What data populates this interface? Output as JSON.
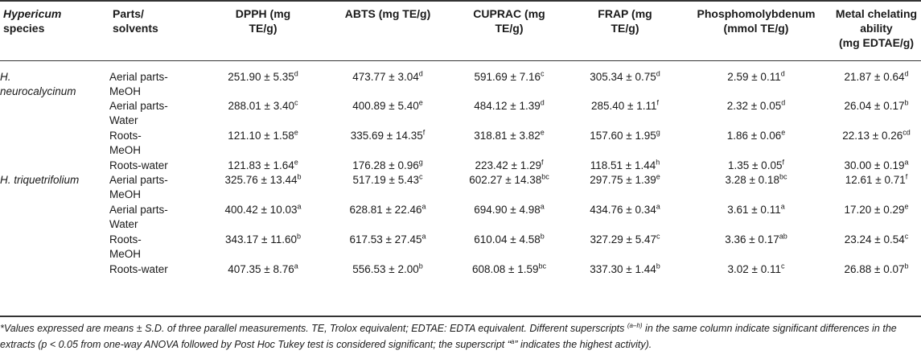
{
  "headers": {
    "species_italic": "Hypericum",
    "species_rest": "species",
    "parts": [
      "Parts/",
      "solvents"
    ],
    "dpph": [
      "DPPH (mg",
      "TE/g)"
    ],
    "abts": [
      "ABTS (mg TE/g)"
    ],
    "cuprac": [
      "CUPRAC (mg",
      "TE/g)"
    ],
    "frap": [
      "FRAP (mg",
      "TE/g)"
    ],
    "phospho": [
      "Phosphomolybdenum",
      "(mmol TE/g)"
    ],
    "metal": [
      "Metal chelating",
      "ability",
      "(mg EDTAE/g)"
    ]
  },
  "rows": [
    {
      "species": [
        "H.",
        "neurocalycinum"
      ],
      "parts": [
        "Aerial parts-",
        "MeOH"
      ],
      "vals": [
        [
          "251.90 ± 5.35",
          "d"
        ],
        [
          "473.77 ± 3.04",
          "d"
        ],
        [
          "591.69 ± 7.16",
          "c"
        ],
        [
          "305.34 ± 0.75",
          "d"
        ],
        [
          "2.59 ± 0.11",
          "d"
        ],
        [
          "21.87 ± 0.64",
          "d"
        ]
      ]
    },
    {
      "species": [],
      "parts": [
        "Aerial parts-",
        "Water"
      ],
      "vals": [
        [
          "288.01 ± 3.40",
          "c"
        ],
        [
          "400.89 ± 5.40",
          "e"
        ],
        [
          "484.12 ± 1.39",
          "d"
        ],
        [
          "285.40 ± 1.11",
          "f"
        ],
        [
          "2.32 ± 0.05",
          "d"
        ],
        [
          "26.04 ± 0.17",
          "b"
        ]
      ]
    },
    {
      "species": [],
      "parts": [
        "Roots-",
        "MeOH"
      ],
      "vals": [
        [
          "121.10 ± 1.58",
          "e"
        ],
        [
          "335.69 ± 14.35",
          "f"
        ],
        [
          "318.81 ± 3.82",
          "e"
        ],
        [
          "157.60 ± 1.95",
          "g"
        ],
        [
          "1.86 ± 0.06",
          "e"
        ],
        [
          "22.13 ± 0.26",
          "cd"
        ]
      ]
    },
    {
      "species": [],
      "parts": [
        "Roots-water"
      ],
      "vals": [
        [
          "121.83 ± 1.64",
          "e"
        ],
        [
          "176.28 ± 0.96",
          "g"
        ],
        [
          "223.42 ± 1.29",
          "f"
        ],
        [
          "118.51 ± 1.44",
          "h"
        ],
        [
          "1.35 ± 0.05",
          "f"
        ],
        [
          "30.00 ± 0.19",
          "a"
        ]
      ]
    },
    {
      "species": [
        "H. triquetrifolium"
      ],
      "parts": [
        "Aerial parts-",
        "MeOH"
      ],
      "vals": [
        [
          "325.76 ± 13.44",
          "b"
        ],
        [
          "517.19 ± 5.43",
          "c"
        ],
        [
          "602.27 ± 14.38",
          "bc"
        ],
        [
          "297.75 ± 1.39",
          "e"
        ],
        [
          "3.28 ± 0.18",
          "bc"
        ],
        [
          "12.61 ± 0.71",
          "f"
        ]
      ]
    },
    {
      "species": [],
      "parts": [
        "Aerial parts-",
        "Water"
      ],
      "vals": [
        [
          "400.42 ± 10.03",
          "a"
        ],
        [
          "628.81 ± 22.46",
          "a"
        ],
        [
          "694.90 ± 4.98",
          "a"
        ],
        [
          "434.76 ± 0.34",
          "a"
        ],
        [
          "3.61 ± 0.11",
          "a"
        ],
        [
          "17.20 ± 0.29",
          "e"
        ]
      ]
    },
    {
      "species": [],
      "parts": [
        "Roots-",
        "MeOH"
      ],
      "vals": [
        [
          "343.17 ± 11.60",
          "b"
        ],
        [
          "617.53 ± 27.45",
          "a"
        ],
        [
          "610.04 ± 4.58",
          "b"
        ],
        [
          "327.29 ± 5.47",
          "c"
        ],
        [
          "3.36 ± 0.17",
          "ab"
        ],
        [
          "23.24 ± 0.54",
          "c"
        ]
      ]
    },
    {
      "species": [],
      "parts": [
        "Roots-water"
      ],
      "vals": [
        [
          "407.35 ± 8.76",
          "a"
        ],
        [
          "556.53 ± 2.00",
          "b"
        ],
        [
          "608.08 ± 1.59",
          "bc"
        ],
        [
          "337.30 ± 1.44",
          "b"
        ],
        [
          "3.02 ± 0.11",
          "c"
        ],
        [
          "26.88 ± 0.07",
          "b"
        ]
      ]
    }
  ],
  "footnote": {
    "part1": "*Values expressed are means ± S.D. of three parallel measurements. TE, Trolox equivalent; EDTAE: EDTA equivalent. Different superscripts ",
    "sup1": "(a–h)",
    "part2": " in the same column indicate significant differences in the extracts (p < 0.05 from one-way ANOVA followed by Post Hoc Tukey test is considered significant; the superscript “",
    "sup2": "a",
    "part3": "” indicates the highest activity)."
  }
}
